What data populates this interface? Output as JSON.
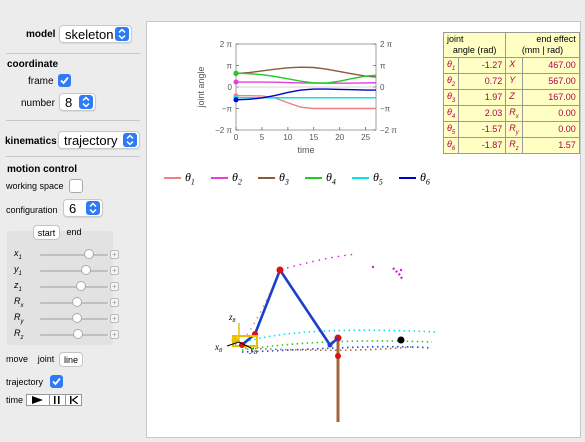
{
  "controls": {
    "model": {
      "label": "model",
      "value": "skeleton"
    },
    "coordinate": {
      "header": "coordinate",
      "frame_label": "frame",
      "frame_checked": true,
      "number_label": "number",
      "number_value": "8"
    },
    "kinematics": {
      "label": "kinematics",
      "value": "trajectory"
    },
    "motion_control": {
      "header": "motion control",
      "working_space_label": "working space",
      "working_space_checked": false,
      "configuration_label": "configuration",
      "configuration_value": "6",
      "tabs": [
        "start",
        "end"
      ],
      "sliders": [
        {
          "label": "x1",
          "value": 0.72
        },
        {
          "label": "y1",
          "value": 0.68
        },
        {
          "label": "z1",
          "value": 0.6
        },
        {
          "label": "Rx1",
          "value": 0.55
        },
        {
          "label": "Ry1",
          "value": 0.54
        },
        {
          "label": "Rz1",
          "value": 0.56
        }
      ],
      "slider_labels": [
        {
          "base": "x",
          "sub": "1"
        },
        {
          "base": "y",
          "sub": "1"
        },
        {
          "base": "z",
          "sub": "1"
        },
        {
          "base": "R",
          "sub": "x",
          "sub2": "1"
        },
        {
          "base": "R",
          "sub": "y",
          "sub2": "1"
        },
        {
          "base": "R",
          "sub": "z",
          "sub2": "1"
        }
      ],
      "move_label": "move",
      "move_options": [
        "joint",
        "line"
      ],
      "trajectory_label": "trajectory",
      "trajectory_checked": true,
      "time_label": "time"
    }
  },
  "plot": {
    "ylabel": "joint angle",
    "xlabel": "time",
    "yticks_left": [
      "2 π",
      "π",
      "0",
      "−π",
      "−2 π"
    ],
    "yticks_right": [
      "2 π",
      "π",
      "0",
      "−π",
      "−2 π"
    ],
    "xticks": [
      "0",
      "5",
      "10",
      "15",
      "20",
      "25"
    ]
  },
  "chart_data": {
    "type": "line",
    "title": "",
    "xlabel": "time",
    "ylabel": "joint angle",
    "xlim": [
      0,
      27
    ],
    "ylim": [
      -6.283,
      6.283
    ],
    "x": [
      0,
      2.5,
      5,
      7.5,
      10,
      12.5,
      15,
      17.5,
      20,
      22.5,
      25,
      27
    ],
    "series": [
      {
        "name": "θ1",
        "color": "#f08080",
        "values": [
          -1.27,
          -1.27,
          -1.3,
          -1.6,
          -2.3,
          -2.95,
          -3.14,
          -3.14,
          -3.14,
          -3.14,
          -3.14,
          -3.14
        ]
      },
      {
        "name": "θ2",
        "color": "#e040e0",
        "values": [
          0.72,
          0.72,
          0.72,
          0.7,
          0.65,
          0.6,
          0.58,
          0.56,
          0.56,
          0.57,
          0.6,
          0.62
        ]
      },
      {
        "name": "θ3",
        "color": "#8b5a3c",
        "values": [
          1.97,
          2.1,
          2.35,
          2.6,
          2.8,
          2.9,
          2.85,
          2.6,
          2.25,
          1.9,
          1.6,
          1.45
        ]
      },
      {
        "name": "θ4",
        "color": "#22cc22",
        "values": [
          2.03,
          1.95,
          1.8,
          1.55,
          1.2,
          0.85,
          0.6,
          0.6,
          0.85,
          1.25,
          1.6,
          1.7
        ]
      },
      {
        "name": "θ5",
        "color": "#00e5e5",
        "values": [
          -1.57,
          -1.57,
          -1.57,
          -1.57,
          -1.57,
          -1.57,
          -1.57,
          -1.57,
          -1.57,
          -1.57,
          -1.57,
          -1.57
        ]
      },
      {
        "name": "θ6",
        "color": "#0000cc",
        "values": [
          -1.87,
          -1.8,
          -1.6,
          -1.25,
          -0.8,
          -0.45,
          -0.3,
          -0.3,
          -0.35,
          -0.4,
          -0.45,
          -0.45
        ]
      }
    ]
  },
  "legend": [
    {
      "base": "θ",
      "sub": "1",
      "color": "#f08080"
    },
    {
      "base": "θ",
      "sub": "2",
      "color": "#e040e0"
    },
    {
      "base": "θ",
      "sub": "3",
      "color": "#8b5a3c"
    },
    {
      "base": "θ",
      "sub": "4",
      "color": "#22cc22"
    },
    {
      "base": "θ",
      "sub": "5",
      "color": "#00e5e5"
    },
    {
      "base": "θ",
      "sub": "6",
      "color": "#0000cc"
    }
  ],
  "table": {
    "header_joint": [
      "joint",
      "angle (rad)"
    ],
    "header_end": [
      "end effect",
      "(mm | rad)"
    ],
    "rows": [
      {
        "js": "θ",
        "jsub": "1",
        "jval": "-1.27",
        "es": "X",
        "esub": "",
        "eval": "467.00"
      },
      {
        "js": "θ",
        "jsub": "2",
        "jval": "0.72",
        "es": "Y",
        "esub": "",
        "eval": "567.00"
      },
      {
        "js": "θ",
        "jsub": "3",
        "jval": "1.97",
        "es": "Z",
        "esub": "",
        "eval": "167.00"
      },
      {
        "js": "θ",
        "jsub": "4",
        "jval": "2.03",
        "es": "R",
        "esub": "x",
        "eval": "0.00"
      },
      {
        "js": "θ",
        "jsub": "5",
        "jval": "-1.57",
        "es": "R",
        "esub": "y",
        "eval": "0.00"
      },
      {
        "js": "θ",
        "jsub": "6",
        "jval": "-1.87",
        "es": "R",
        "esub": "z",
        "eval": "1.57"
      }
    ]
  },
  "scene": {
    "frame_labels": [
      {
        "base": "z",
        "sub": "8"
      },
      {
        "base": "x",
        "sub": "8"
      },
      {
        "base": "y",
        "sub": "8"
      }
    ]
  },
  "colors": {
    "accent": "#2f7bf5",
    "table_bg": "#ffffc4",
    "table_value": "#b0004a",
    "robot": "#1a3fcc",
    "joint": "#e01010"
  }
}
